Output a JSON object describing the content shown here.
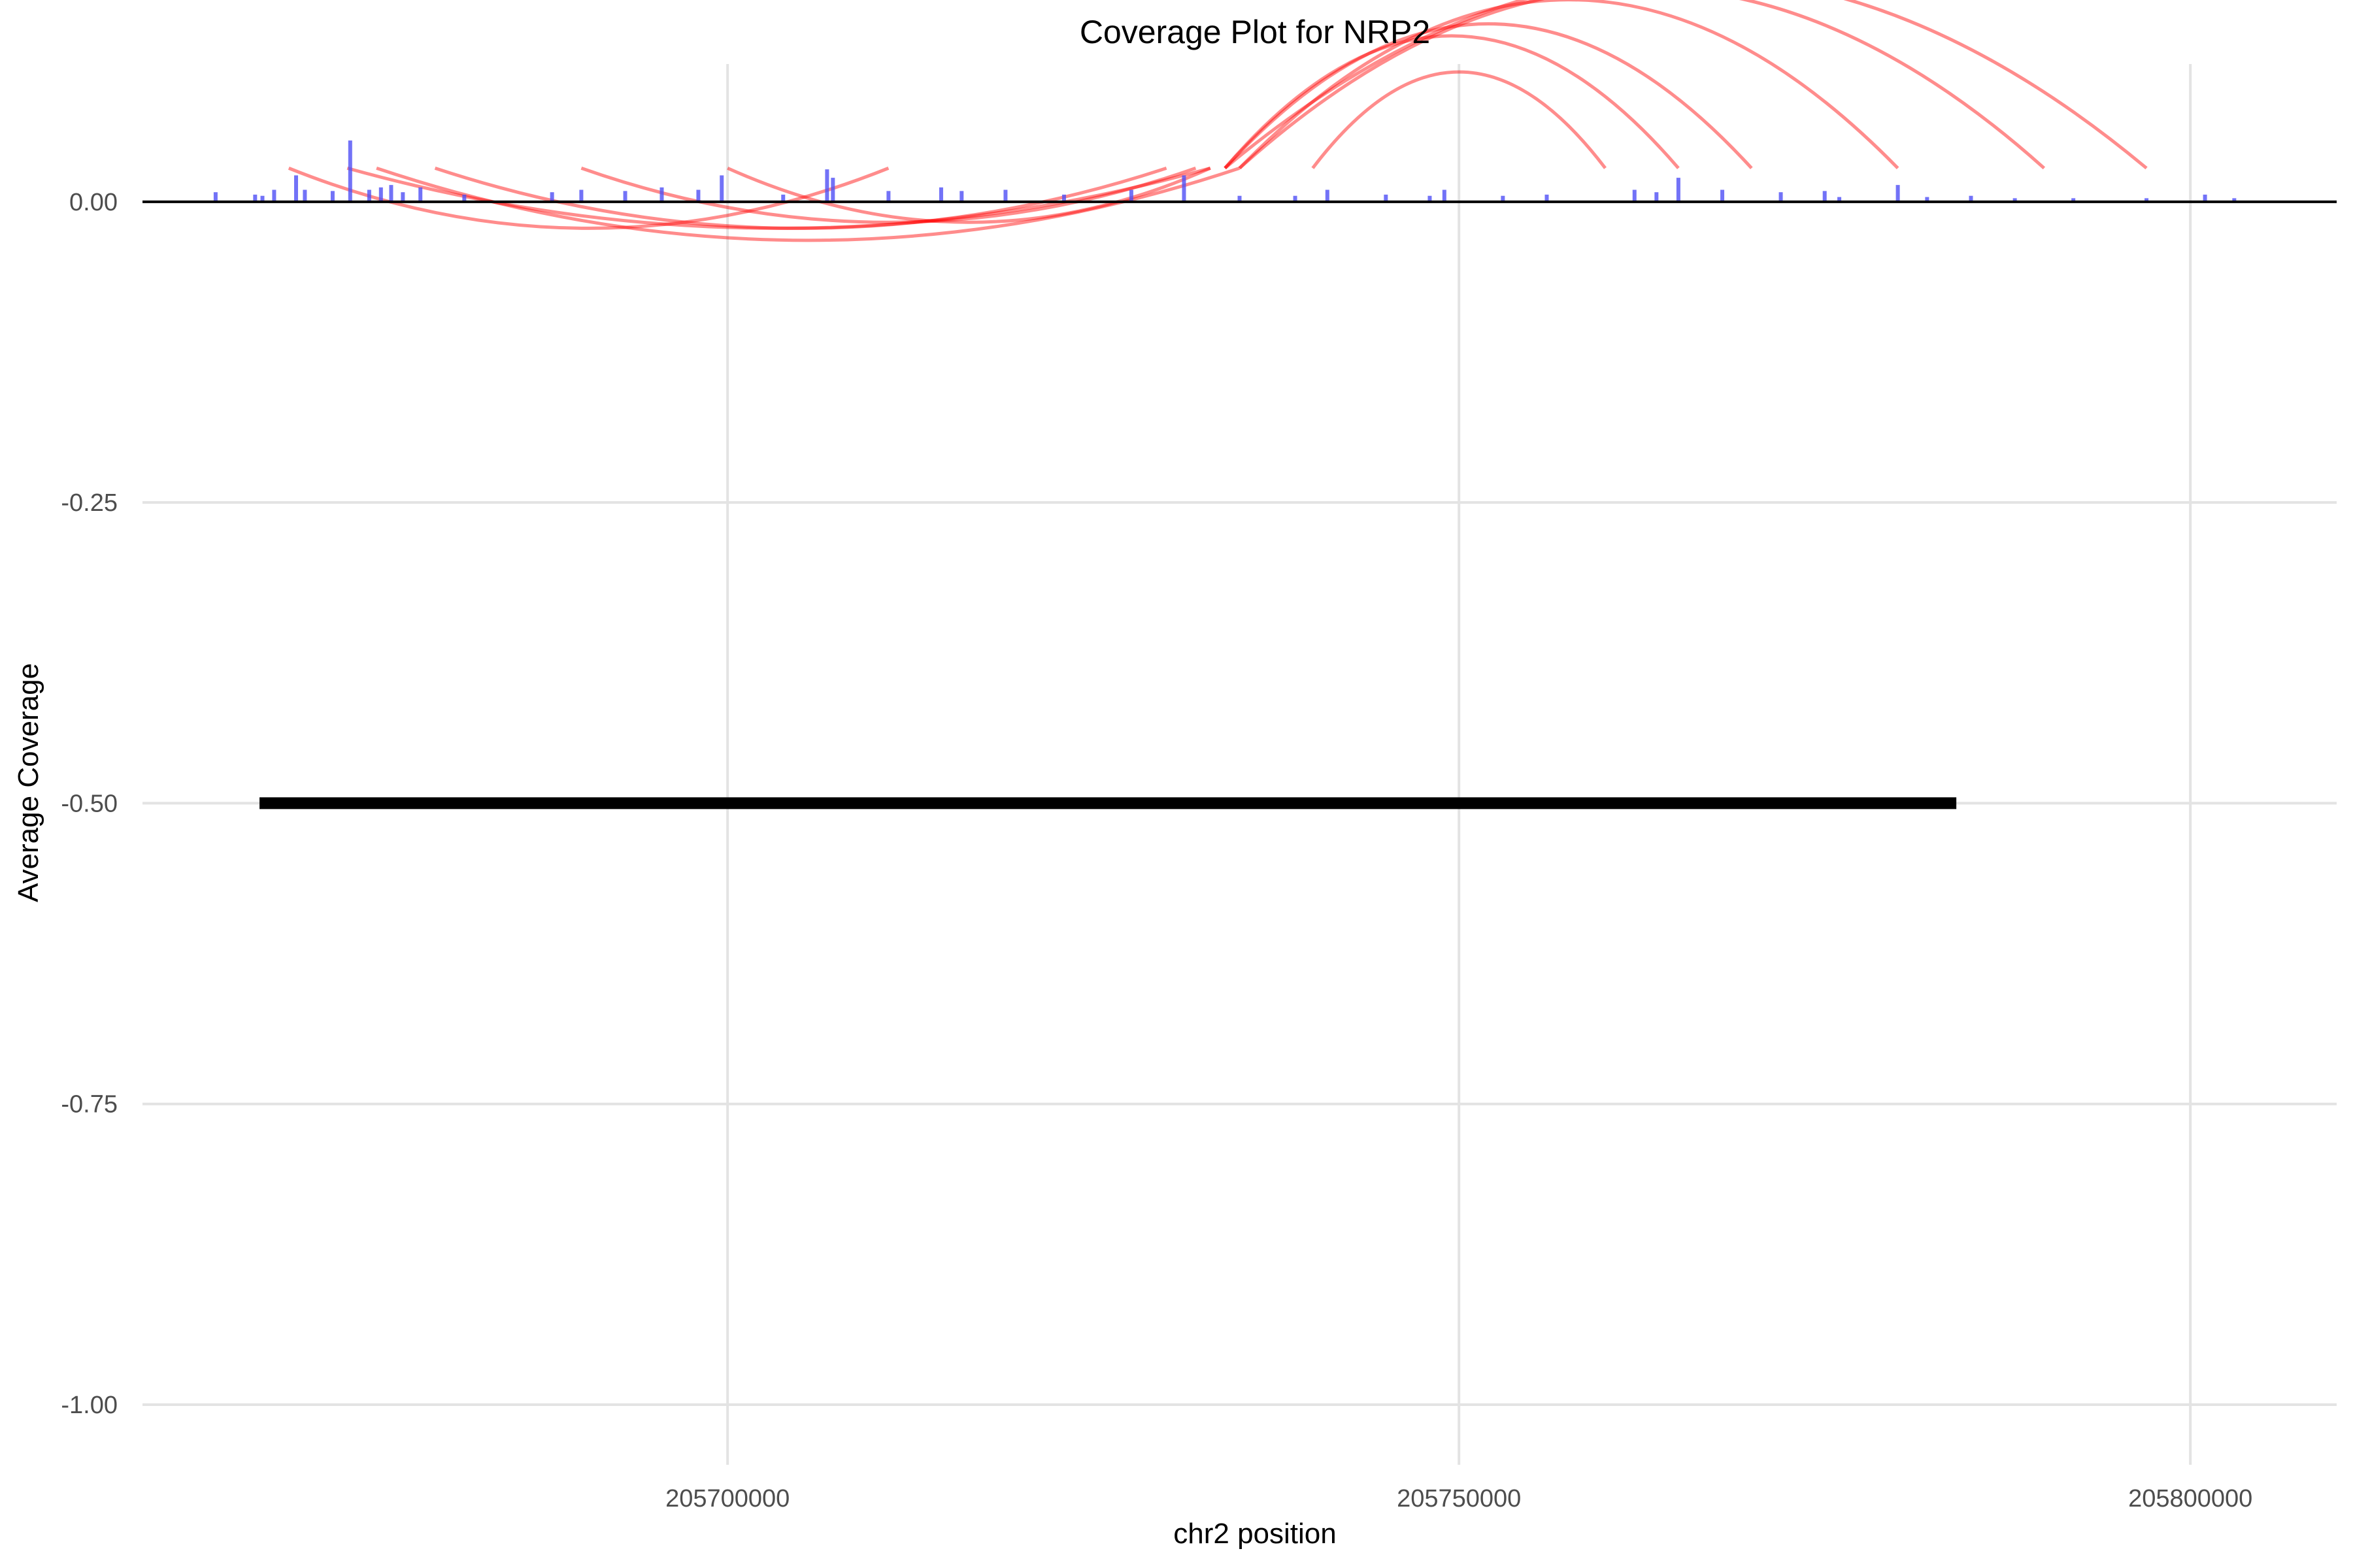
{
  "chart_data": {
    "type": "line",
    "title": "Coverage Plot for NRP2",
    "xlabel": "chr2 position",
    "ylabel": "Average Coverage",
    "xlim": [
      205660000,
      205810000
    ],
    "ylim": [
      -1.05,
      0.12
    ],
    "x_ticks": [
      {
        "value": 205700000,
        "label": "205700000"
      },
      {
        "value": 205750000,
        "label": "205750000"
      },
      {
        "value": 205800000,
        "label": "205800000"
      }
    ],
    "y_ticks": [
      {
        "value": 0.0,
        "label": "0.00"
      },
      {
        "value": -0.25,
        "label": "-0.25"
      },
      {
        "value": -0.5,
        "label": "-0.50"
      },
      {
        "value": -0.75,
        "label": "-0.75"
      },
      {
        "value": -1.0,
        "label": "-1.00"
      }
    ],
    "grid": true,
    "legend": "none",
    "colors": {
      "coverage": "#4f4ff5",
      "junction_arc": "#ff0000",
      "baseline": "#000000",
      "gene_model": "#000000",
      "grid": "#e3e3e3"
    },
    "series": [
      {
        "type": "bar",
        "x": [
          205665000,
          205667700,
          205668200,
          205669000,
          205670500,
          205671100,
          205673000,
          205674200,
          205675500,
          205676300,
          205677000,
          205677800,
          205679000,
          205682000,
          205688000,
          205690000,
          205693000,
          205695500,
          205698000,
          205699600,
          205703800,
          205706800,
          205707200,
          205711000,
          205714600,
          205716000,
          205719000,
          205723000,
          205727600,
          205731200,
          205735000,
          205738800,
          205741000,
          205745000,
          205748000,
          205749000,
          205753000,
          205756000,
          205762000,
          205763500,
          205765000,
          205768000,
          205772000,
          205775000,
          205776000,
          205780000,
          205782000,
          205785000,
          205788000,
          205792000,
          205797000,
          205801000,
          205803000
        ],
        "values": [
          0.008,
          0.006,
          0.005,
          0.01,
          0.022,
          0.01,
          0.009,
          0.051,
          0.01,
          0.012,
          0.014,
          0.008,
          0.012,
          0.006,
          0.008,
          0.01,
          0.009,
          0.012,
          0.01,
          0.022,
          0.006,
          0.027,
          0.02,
          0.009,
          0.012,
          0.009,
          0.01,
          0.006,
          0.01,
          0.022,
          0.005,
          0.005,
          0.01,
          0.006,
          0.005,
          0.01,
          0.005,
          0.006,
          0.01,
          0.008,
          0.02,
          0.01,
          0.008,
          0.009,
          0.004,
          0.014,
          0.004,
          0.005,
          0.003,
          0.003,
          0.003,
          0.006,
          0.003
        ]
      },
      {
        "type": "arc",
        "name": "",
        "arcs": [
          {
            "start": 205670000,
            "end": 205711000,
            "height": 0.05
          },
          {
            "start": 205674000,
            "end": 205733000,
            "height": 0.05
          },
          {
            "start": 205676000,
            "end": 205735000,
            "height": 0.06
          },
          {
            "start": 205680000,
            "end": 205730000,
            "height": 0.05
          },
          {
            "start": 205690000,
            "end": 205732000,
            "height": 0.045
          },
          {
            "start": 205700000,
            "end": 205733000,
            "height": 0.045
          },
          {
            "start": 205734000,
            "end": 205765000,
            "height": 0.11
          },
          {
            "start": 205734000,
            "end": 205770000,
            "height": 0.12
          },
          {
            "start": 205735000,
            "end": 205780000,
            "height": 0.14
          },
          {
            "start": 205735000,
            "end": 205790000,
            "height": 0.15
          },
          {
            "start": 205734000,
            "end": 205797000,
            "height": 0.16
          },
          {
            "start": 205740000,
            "end": 205760000,
            "height": 0.08
          }
        ]
      },
      {
        "type": "segment",
        "x": [
          205668000,
          205784000
        ],
        "y": [
          -0.5,
          -0.5
        ]
      }
    ]
  }
}
